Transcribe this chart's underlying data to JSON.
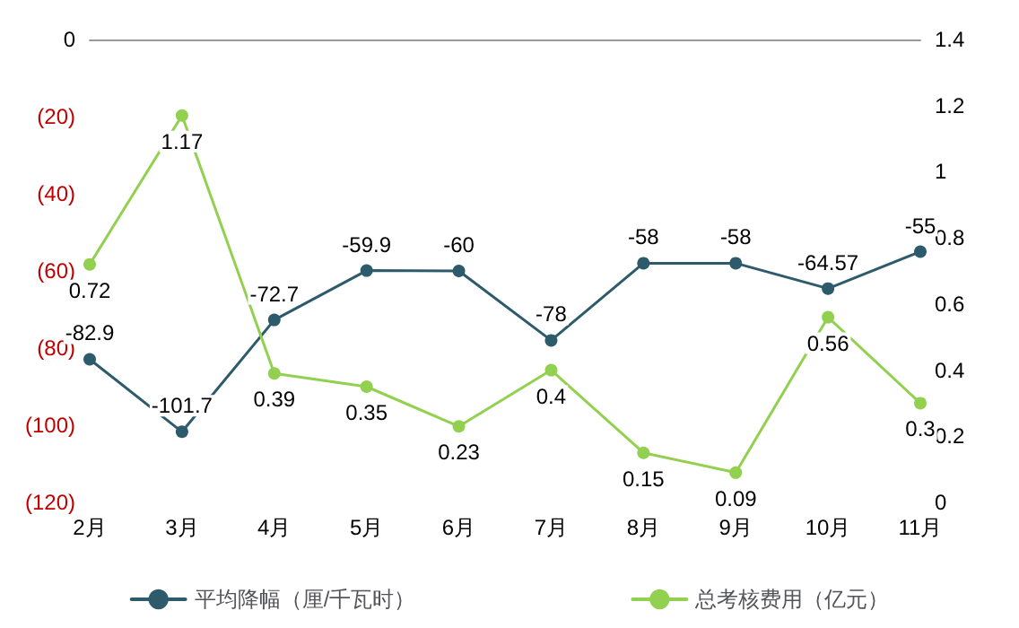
{
  "chart_data": {
    "type": "line",
    "categories": [
      "2月",
      "3月",
      "4月",
      "5月",
      "6月",
      "7月",
      "8月",
      "9月",
      "10月",
      "11月"
    ],
    "series": [
      {
        "name": "平均降幅（厘/千瓦时）",
        "color": "#2d5b6b",
        "values": [
          -82.9,
          -101.7,
          -72.7,
          -59.9,
          -60,
          -78,
          -58,
          -58,
          -64.57,
          -55
        ]
      },
      {
        "name": "总考核费用（亿元）",
        "color": "#92d050",
        "axis": "y2",
        "values": [
          0.72,
          1.17,
          0.39,
          0.35,
          0.23,
          0.4,
          0.15,
          0.09,
          0.56,
          0.3
        ]
      }
    ],
    "ylim": [
      -120,
      0
    ],
    "yticks": [
      0,
      {
        "value": -20,
        "label": "(20)"
      },
      {
        "value": -40,
        "label": "(40)"
      },
      {
        "value": -60,
        "label": "(60)"
      },
      {
        "value": -80,
        "label": "(80)"
      },
      {
        "value": -100,
        "label": "(100)"
      },
      {
        "value": -120,
        "label": "(120)"
      }
    ],
    "y2lim": [
      0,
      1.4
    ],
    "y2ticks": [
      0,
      0.2,
      0.4,
      0.6,
      0.8,
      1,
      1.2,
      1.4
    ],
    "data_labels": true,
    "marker": "circle",
    "legend": "bottom",
    "grid": false
  }
}
